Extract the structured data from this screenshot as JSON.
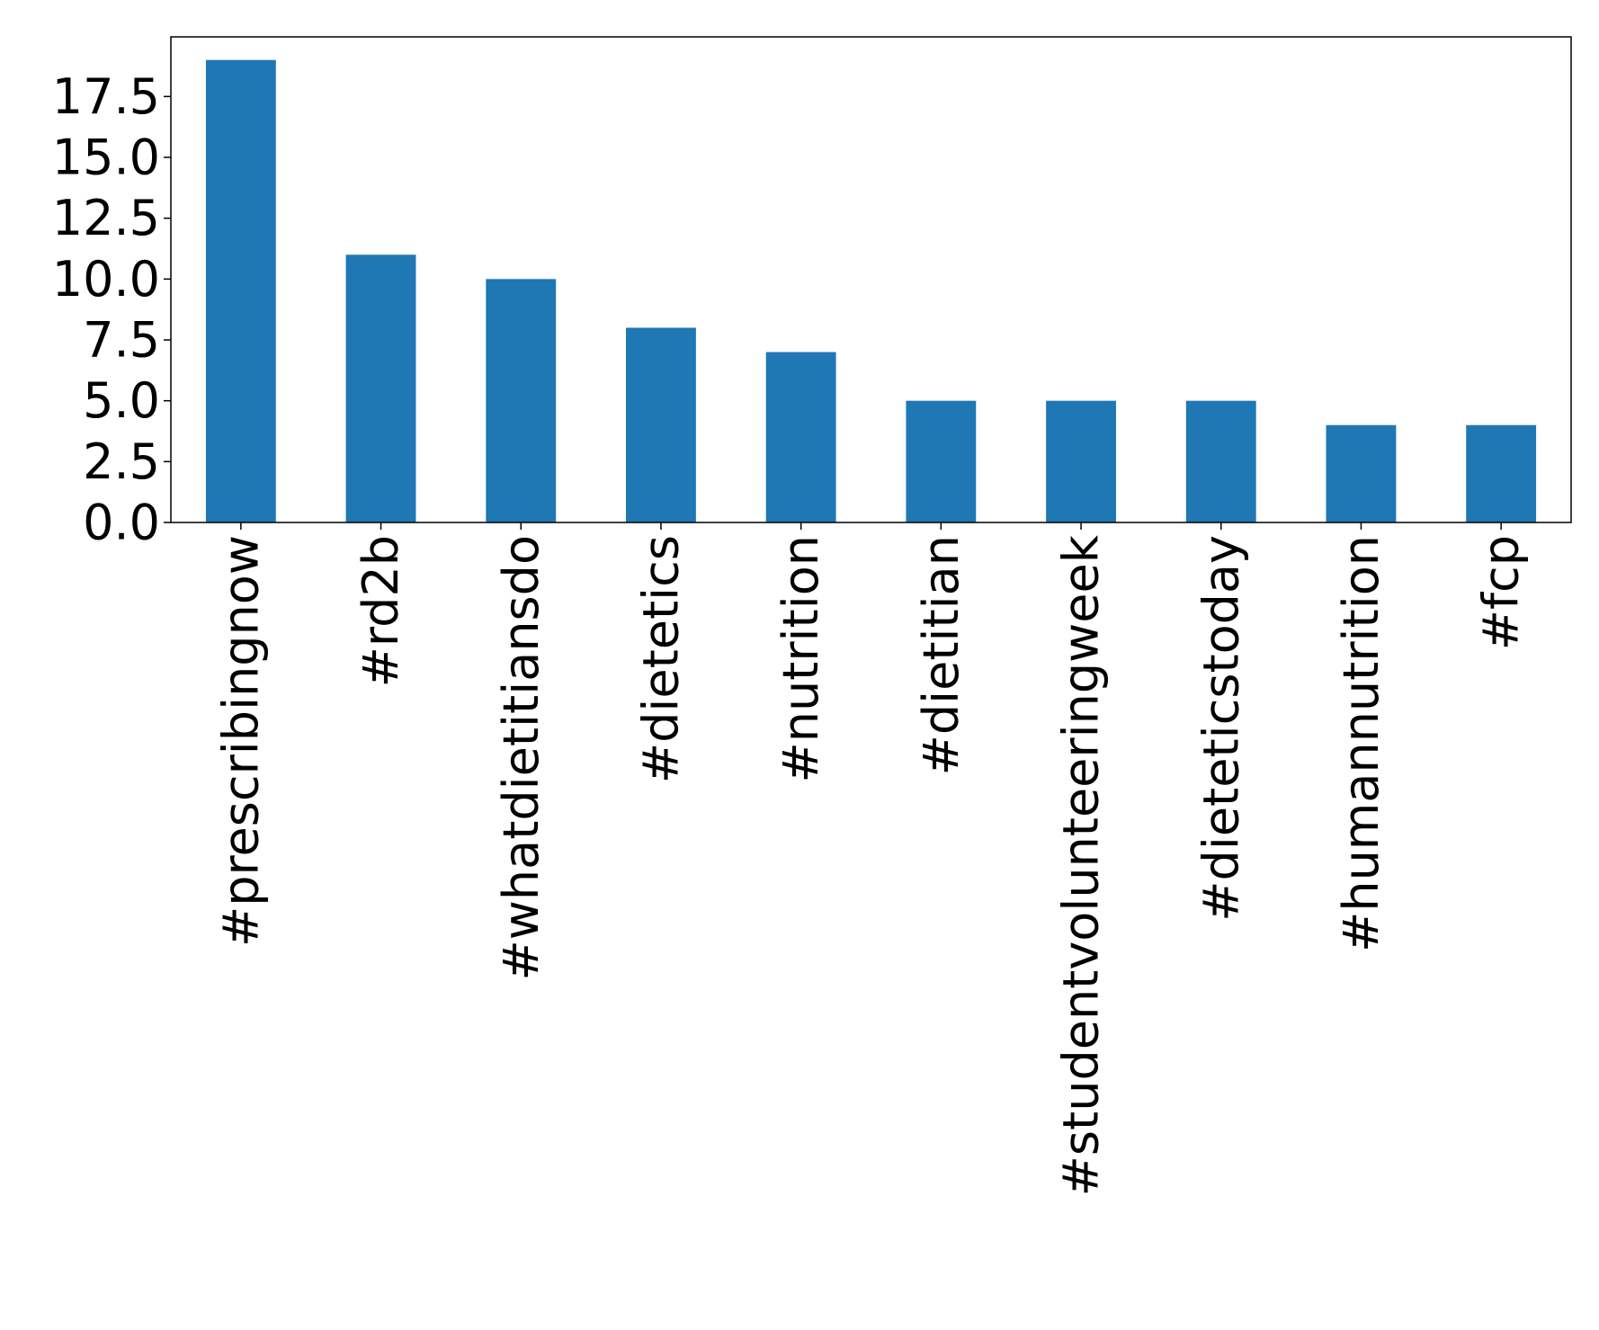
{
  "chart_data": {
    "type": "bar",
    "title": "",
    "xlabel": "",
    "ylabel": "",
    "categories": [
      "#prescribingnow",
      "#rd2b",
      "#whatdietitiansdo",
      "#dietetics",
      "#nutrition",
      "#dietitian",
      "#studentvolunteeringweek",
      "#dieteticstoday",
      "#humannutrition",
      "#fcp"
    ],
    "values": [
      19,
      11,
      10,
      8,
      7,
      5,
      5,
      5,
      4,
      4
    ],
    "ylim": [
      0,
      19.95
    ],
    "yticks": [
      0.0,
      2.5,
      5.0,
      7.5,
      10.0,
      12.5,
      15.0,
      17.5
    ],
    "ytick_labels": [
      "0.0",
      "2.5",
      "5.0",
      "7.5",
      "10.0",
      "12.5",
      "15.0",
      "17.5"
    ],
    "bar_color": "#1f77b4",
    "grid": false,
    "legend": "none",
    "x_tick_rotation": "vertical"
  }
}
